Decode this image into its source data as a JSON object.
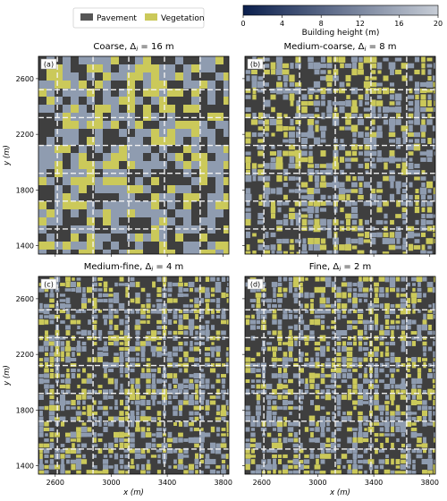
{
  "legend": {
    "items": [
      {
        "label": "Pavement",
        "color": "#565656"
      },
      {
        "label": "Vegetation",
        "color": "#cbc95a"
      }
    ]
  },
  "colorbar": {
    "label": "Building height (m)",
    "ticks": [
      "0",
      "4",
      "8",
      "12",
      "16",
      "20"
    ],
    "min": 0,
    "max": 20,
    "color_low": "#0b1f4d",
    "color_high": "#c7cdd6"
  },
  "axes": {
    "xlabel": "x (m)",
    "ylabel": "y (m)",
    "x_ticks": [
      2600,
      3000,
      3400,
      3800
    ],
    "y_ticks": [
      1400,
      1800,
      2200,
      2600
    ],
    "xlim": [
      2480,
      3840
    ],
    "ylim": [
      1340,
      2760
    ]
  },
  "panels": [
    {
      "tag": "(a)",
      "title_name": "Coarse",
      "delta_label": "Δ",
      "delta_sub": "i",
      "delta_value": " = 16 m"
    },
    {
      "tag": "(b)",
      "title_name": "Medium-coarse",
      "delta_label": "Δ",
      "delta_sub": "i",
      "delta_value": " = 8 m"
    },
    {
      "tag": "(c)",
      "title_name": "Medium-fine",
      "delta_label": "Δ",
      "delta_sub": "i",
      "delta_value": " = 4 m"
    },
    {
      "tag": "(d)",
      "title_name": "Fine",
      "delta_label": "Δ",
      "delta_sub": "i",
      "delta_value": " = 2 m"
    }
  ],
  "chart_data": {
    "type": "heatmap",
    "description_of_cells": "categorical land cover map: pavement, vegetation, buildings coloured by height",
    "resolutions_m": [
      16,
      8,
      4,
      2
    ],
    "x_range": [
      2480,
      3840
    ],
    "y_range": [
      1340,
      2760
    ],
    "colors": {
      "pavement": "#3f3f3f",
      "vegetation": "#cbc95a",
      "building": "#8f9cb0",
      "road_dash": "#f2f2f2"
    }
  }
}
